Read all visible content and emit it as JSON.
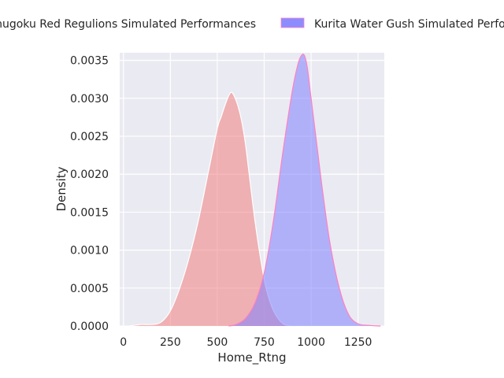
{
  "chart_data": {
    "type": "area",
    "title": "",
    "xlabel": "Home_Rtng",
    "ylabel": "Density",
    "xlim": [
      -20,
      1390
    ],
    "ylim": [
      0,
      0.0036
    ],
    "xticks": [
      0,
      250,
      500,
      750,
      1000,
      1250
    ],
    "xtick_labels": [
      "0",
      "250",
      "500",
      "750",
      "1000",
      "1250"
    ],
    "yticks": [
      0,
      0.0005,
      0.001,
      0.0015,
      0.002,
      0.0025,
      0.003,
      0.0035
    ],
    "ytick_labels": [
      "0.0000",
      "0.0005",
      "0.0010",
      "0.0015",
      "0.0020",
      "0.0025",
      "0.0030",
      "0.0035"
    ],
    "grid": true,
    "legend_position": "top, outside plot",
    "series": [
      {
        "name": "Chugoku Red Regulions Simulated Performances",
        "color": "#f08080",
        "edge_color": "#ffffff",
        "x": [
          30,
          100,
          150,
          200,
          250,
          300,
          350,
          400,
          450,
          500,
          520,
          540,
          560,
          575,
          590,
          610,
          630,
          650,
          670,
          700,
          730,
          760,
          800,
          850,
          900
        ],
        "y": [
          0,
          2e-05,
          2e-05,
          5e-05,
          0.0002,
          0.0005,
          0.0009,
          0.0014,
          0.002,
          0.0026,
          0.00275,
          0.0029,
          0.00303,
          0.00308,
          0.00303,
          0.0029,
          0.0027,
          0.0024,
          0.002,
          0.0014,
          0.0009,
          0.0005,
          0.0002,
          3e-05,
          0
        ]
      },
      {
        "name": "Kurita Water Gush Simulated Performances",
        "color": "#8080ff",
        "edge_color": "#ff80c0",
        "x": [
          560,
          600,
          650,
          700,
          750,
          800,
          850,
          900,
          930,
          950,
          965,
          980,
          1000,
          1030,
          1060,
          1100,
          1150,
          1200,
          1250,
          1300,
          1370
        ],
        "y": [
          0,
          2e-05,
          0.0001,
          0.0003,
          0.0007,
          0.0014,
          0.0023,
          0.0031,
          0.00345,
          0.00357,
          0.00356,
          0.0034,
          0.003,
          0.0024,
          0.0018,
          0.0011,
          0.0005,
          0.00015,
          3e-05,
          1e-05,
          0
        ]
      }
    ]
  }
}
